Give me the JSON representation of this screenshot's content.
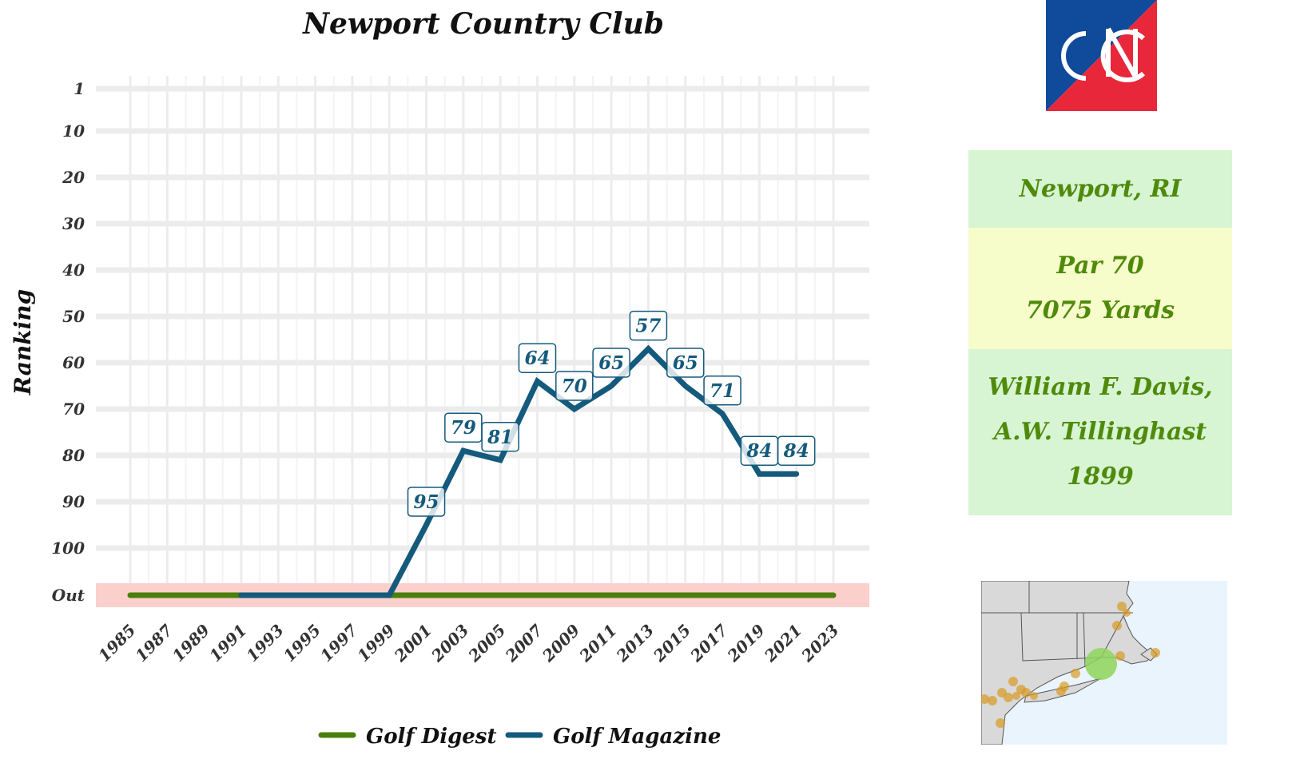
{
  "chart_data": {
    "type": "line",
    "title": "Newport Country Club",
    "xlabel": "",
    "ylabel": "Ranking",
    "x_ticks": [
      "1985",
      "1987",
      "1989",
      "1991",
      "1993",
      "1995",
      "1997",
      "1999",
      "2001",
      "2003",
      "2005",
      "2007",
      "2009",
      "2011",
      "2013",
      "2015",
      "2017",
      "2019",
      "2021",
      "2023"
    ],
    "y_ticks": [
      "1",
      "10",
      "20",
      "30",
      "40",
      "50",
      "60",
      "70",
      "80",
      "90",
      "100",
      "Out"
    ],
    "xlim": [
      1984,
      2025
    ],
    "ylim": [
      1,
      110
    ],
    "y_reversed": true,
    "out_value": 110,
    "out_band_color": "#fbd0cc",
    "grid": true,
    "legend_position": "bottom",
    "series": [
      {
        "name": "Golf Digest",
        "color": "#4a7f0b",
        "x": [
          1985,
          2023
        ],
        "y": [
          110,
          110
        ],
        "labels": []
      },
      {
        "name": "Golf Magazine",
        "color": "#145a7c",
        "x": [
          1991,
          1999,
          2001,
          2003,
          2005,
          2007,
          2009,
          2011,
          2013,
          2015,
          2017,
          2019,
          2021
        ],
        "y": [
          110,
          110,
          95,
          79,
          81,
          64,
          70,
          65,
          57,
          65,
          71,
          84,
          84
        ],
        "labels": [
          {
            "x": 2001,
            "y": 95,
            "text": "95"
          },
          {
            "x": 2003,
            "y": 79,
            "text": "79"
          },
          {
            "x": 2005,
            "y": 81,
            "text": "81"
          },
          {
            "x": 2007,
            "y": 64,
            "text": "64"
          },
          {
            "x": 2009,
            "y": 70,
            "text": "70"
          },
          {
            "x": 2011,
            "y": 65,
            "text": "65"
          },
          {
            "x": 2013,
            "y": 57,
            "text": "57"
          },
          {
            "x": 2015,
            "y": 65,
            "text": "65"
          },
          {
            "x": 2017,
            "y": 71,
            "text": "71"
          },
          {
            "x": 2019,
            "y": 84,
            "text": "84"
          },
          {
            "x": 2021,
            "y": 84,
            "text": "84"
          }
        ]
      }
    ]
  },
  "info": {
    "location": "Newport, RI",
    "par": "Par 70",
    "yards": "7075 Yards",
    "architect_line1": "William F. Davis,",
    "architect_line2": "A.W. Tillinghast",
    "year": "1899",
    "location_bg": "#d7f4d3",
    "course_bg": "#f6fcca",
    "architect_bg": "#d7f4d3",
    "text_color": "#4f8a0b"
  },
  "logo": {
    "letters": "NCC",
    "colors": {
      "top_left": "#0f4a9b",
      "bottom_right": "#e8273a",
      "letters": "#ffffff"
    }
  },
  "map": {
    "land_color": "#d9d9d9",
    "water_color": "#eaf4fc",
    "marker_color": "#d79a24",
    "highlight_color": "#8ed45a"
  }
}
